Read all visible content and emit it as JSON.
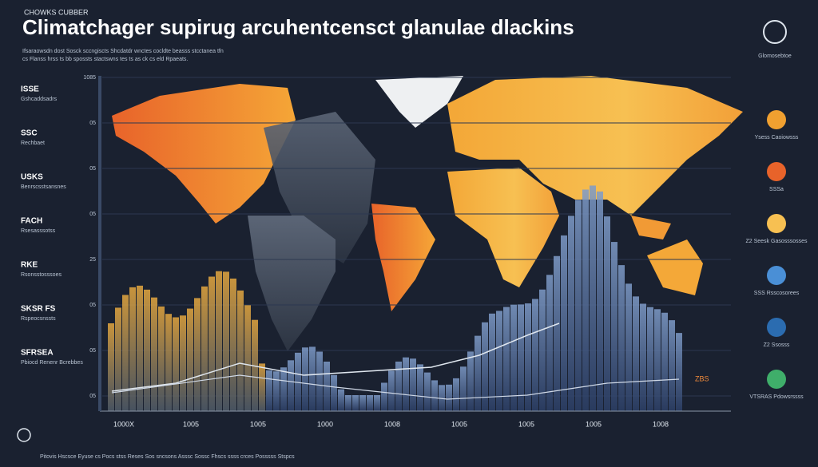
{
  "header": {
    "kicker": "CHOWKS CUBBER",
    "title": "Climatchager supirug arcuhentcensct glanulae dlackins",
    "subtitle": [
      "Ifsaraowsdn dost Sosck sccngiscts Shcdatdr wnctes cocldte beasss stcctanea tfn",
      "cs Flanss hrss ts bb spossts stactswns tes ts as ck cs eld Rpaeats."
    ]
  },
  "left_legend": [
    {
      "title": "ISSE",
      "text": "Gshcaddsadrs"
    },
    {
      "title": "SSC",
      "text": "Rechbaet"
    },
    {
      "title": "USKS",
      "text": "Benrscsstsansnes"
    },
    {
      "title": "FACH",
      "text": "Rsesasssotss"
    },
    {
      "title": "RKE",
      "text": "Rsonsstosssoes"
    },
    {
      "title": "SKSR FS",
      "text": "Rspeocsnssts"
    },
    {
      "title": "SFRSEA",
      "text": "Pbiocd Renenr Bcrebbes"
    }
  ],
  "y_labels": [
    "1085",
    "05",
    "05",
    "05",
    "25",
    "05",
    "05",
    "05"
  ],
  "axis_labels": [
    "1000X",
    "1005",
    "1005",
    "1000",
    "1008",
    "1005",
    "1005",
    "1005",
    "1008"
  ],
  "right_badge": "Glomosebtoe",
  "right_legend": [
    "Ysess Caoiowsss",
    "SSSa",
    "Z2 Seesk Gasosssosses",
    "SSS Rsscosorees",
    "Z2 Ssosss",
    "VTSRAS Pdowsrssss"
  ],
  "chart_note": "ZBS",
  "footer": "Pitovis Hscsce Eyuse cs Pocs stss Reses Sos sncsons Asssc Sossc Fhscs ssss crces Posssss Stspcs"
}
